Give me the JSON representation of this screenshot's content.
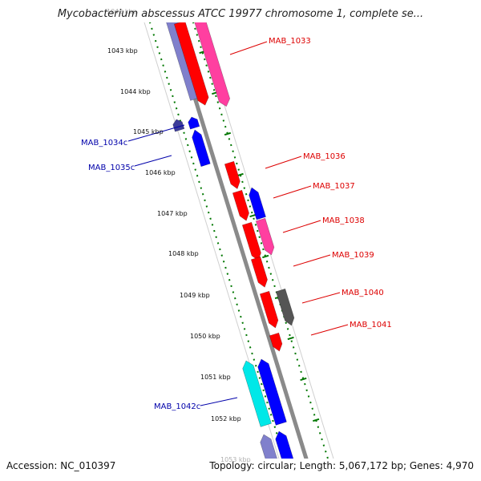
{
  "title": "Mycobacterium abscessus ATCC 19977 chromosome 1, complete se...",
  "footer": {
    "accession": "Accession: NC_010397",
    "summary": "Topology: circular; Length: 5,067,172 bp; Genes: 4,970"
  },
  "colors": {
    "forward_red": "#ff0000",
    "forward_pink": "#ff3fa0",
    "forward_gray": "#555555",
    "reverse_blue": "#0000ff",
    "reverse_navy": "#3d3d9a",
    "reverse_cyan": "#00e8e8",
    "reverse_lavender": "#8080cc",
    "tick_green": "#007700",
    "backbone": "#8a8a8a"
  },
  "kbp_labels": [
    "1042 kbp",
    "1043 kbp",
    "1044 kbp",
    "1045 kbp",
    "1046 kbp",
    "1047 kbp",
    "1048 kbp",
    "1049 kbp",
    "1050 kbp",
    "1051 kbp",
    "1052 kbp",
    "1053 kbp"
  ],
  "gene_labels": {
    "mab_1033": "MAB_1033",
    "mab_1034c": "MAB_1034c",
    "mab_1035c": "MAB_1035c",
    "mab_1036": "MAB_1036",
    "mab_1037": "MAB_1037",
    "mab_1038": "MAB_1038",
    "mab_1039": "MAB_1039",
    "mab_1040": "MAB_1040",
    "mab_1041": "MAB_1041",
    "mab_1042c": "MAB_1042c"
  }
}
